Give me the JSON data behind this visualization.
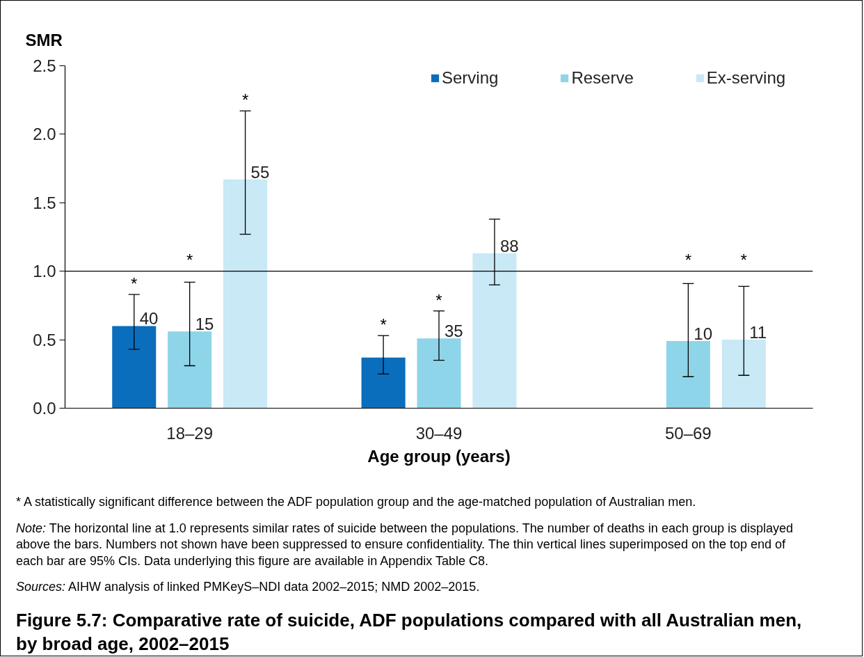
{
  "chart_data": {
    "type": "bar",
    "title": "Figure 5.7: Comparative rate of suicide, ADF populations compared with all Australian men, by broad age, 2002–2015",
    "xlabel": "Age group (years)",
    "ylabel": "SMR",
    "categories": [
      "18–29",
      "30–49",
      "50–69"
    ],
    "series": [
      {
        "name": "Serving",
        "color": "#0a6ebd",
        "values": [
          0.6,
          0.37,
          null
        ],
        "errors": [
          [
            0.43,
            0.83
          ],
          [
            0.25,
            0.53
          ],
          null
        ]
      },
      {
        "name": "Reserve",
        "color": "#8fd5ea",
        "values": [
          0.56,
          0.51,
          0.49
        ],
        "errors": [
          [
            0.31,
            0.92
          ],
          [
            0.35,
            0.71
          ],
          [
            0.23,
            0.91
          ]
        ]
      },
      {
        "name": "Ex-serving",
        "color": "#c8e9f5",
        "values": [
          1.67,
          1.13,
          0.5
        ],
        "errors": [
          [
            1.27,
            2.17
          ],
          [
            0.9,
            1.38
          ],
          [
            0.24,
            0.89
          ]
        ]
      }
    ],
    "ylim": [
      0,
      2.5
    ],
    "yticks": [
      {
        "value": 0,
        "label": "0.0"
      },
      0.5,
      {
        "value": 1,
        "label": "1.0"
      },
      1.5,
      {
        "value": 2,
        "label": "2.0"
      },
      2.5
    ],
    "ref_lines": [
      {
        "axis": "y",
        "value": 1.0,
        "color": "#000000"
      }
    ],
    "legend": "top right",
    "annotations": [
      {
        "text": "40",
        "y": 0.6
      },
      {
        "text": "15",
        "x": "18–29",
        "y": 0.56
      },
      {
        "text": "55",
        "y": 1.67
      },
      {
        "text": "35",
        "x": "30–49",
        "y": 0.51
      },
      {
        "text": "88",
        "y": 1.13
      },
      {
        "text": "10",
        "x": "50–69",
        "y": 0.49
      },
      {
        "text": "11",
        "y": 0.5
      },
      {
        "text": "*",
        "y": 2.17
      },
      {
        "text": "*",
        "y": 0.53
      },
      {
        "text": "*",
        "x": "30–49",
        "y": 0.71
      },
      {
        "text": "*",
        "y": 0.83
      },
      {
        "text": "*",
        "x": "18–29",
        "y": 0.92
      },
      {
        "text": "*",
        "x": "50–69",
        "y": 0.91
      },
      {
        "text": "*",
        "y": 0.89
      },
      "* A statistically significant difference between the ADF population group and the age-matched population of Australian men.",
      "Note: The horizontal line at 1.0 represents similar rates of suicide between the populations. The number of deaths in each group is displayed above the bars. Numbers not shown have been suppressed to ensure confidentiality. The thin vertical lines superimposed on the top end of each bar are 95% CIs. Data underlying this figure are available in Appendix Table C8.",
      "Sources: AIHW analysis of linked PMKeyS–NDI data 2002–2015; NMD 2002–2015."
    ]
  }
}
